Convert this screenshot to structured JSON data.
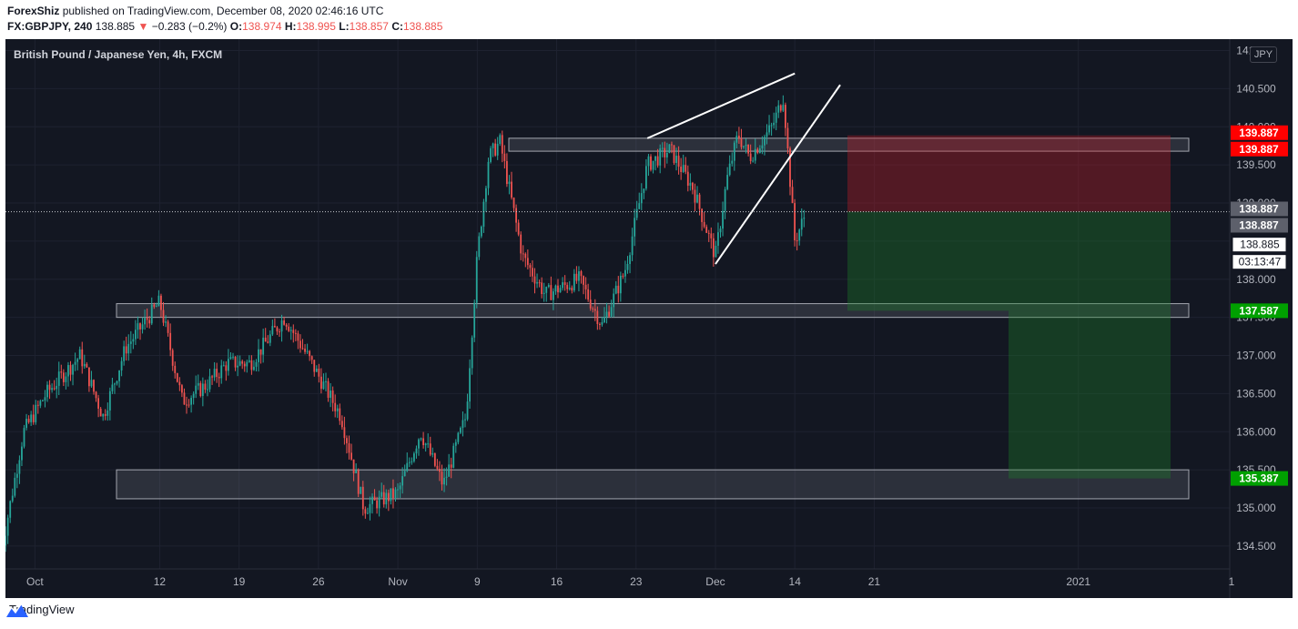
{
  "header": {
    "author": "ForexShiz",
    "published_text": "published on TradingView.com, December 08, 2020 02:46:16 UTC",
    "symbol": "FX:GBPJPY, 240",
    "last": "138.885",
    "change_arrow": "▼",
    "change": "−0.283 (−0.2%)",
    "o_label": "O:",
    "o_value": "138.974",
    "h_label": "H:",
    "h_value": "138.995",
    "l_label": "L:",
    "l_value": "138.857",
    "c_label": "C:",
    "c_value": "138.885"
  },
  "chart": {
    "title": "British Pound / Japanese Yen, 4h, FXCM",
    "currency": "JPY",
    "countdown": "03:13:47",
    "current_price_label": "138.885"
  },
  "footer": {
    "brand": "TradingView",
    "logo_icon": "tradingview-logo-icon"
  },
  "colors": {
    "background": "#131722",
    "up": "#26a69a",
    "down": "#ef5350",
    "stop": "#ff0000",
    "target": "#00a000"
  },
  "chart_data": {
    "type": "candlestick",
    "title": "British Pound / Japanese Yen, 4h, FXCM",
    "x_tick_labels": [
      "Oct",
      "12",
      "19",
      "26",
      "Nov",
      "9",
      "16",
      "23",
      "Dec",
      "14",
      "21",
      "2021"
    ],
    "y_tick_labels": [
      "134.500",
      "135.000",
      "135.500",
      "136.000",
      "136.500",
      "137.000",
      "137.500",
      "138.000",
      "138.500",
      "139.000",
      "139.500",
      "140.000",
      "140.500",
      "141.000"
    ],
    "ylim": [
      134.2,
      141.15
    ],
    "anchor_points": [
      {
        "date": "Sep 28",
        "price": 134.4
      },
      {
        "date": "Sep 30",
        "price": 136.0
      },
      {
        "date": "Oct 2",
        "price": 136.5
      },
      {
        "date": "Oct 5",
        "price": 137.0
      },
      {
        "date": "Oct 7",
        "price": 136.2
      },
      {
        "date": "Oct 9",
        "price": 137.1
      },
      {
        "date": "Oct 12",
        "price": 137.7
      },
      {
        "date": "Oct 14",
        "price": 136.4
      },
      {
        "date": "Oct 16",
        "price": 136.6
      },
      {
        "date": "Oct 18",
        "price": 136.9
      },
      {
        "date": "Oct 20",
        "price": 136.9
      },
      {
        "date": "Oct 23",
        "price": 137.5
      },
      {
        "date": "Oct 25",
        "price": 137.0
      },
      {
        "date": "Oct 28",
        "price": 136.2
      },
      {
        "date": "Oct 30",
        "price": 135.0
      },
      {
        "date": "Nov 2",
        "price": 135.2
      },
      {
        "date": "Nov 4",
        "price": 136.0
      },
      {
        "date": "Nov 6",
        "price": 135.3
      },
      {
        "date": "Nov 8",
        "price": 136.2
      },
      {
        "date": "Nov 9",
        "price": 138.3
      },
      {
        "date": "Nov 10",
        "price": 139.6
      },
      {
        "date": "Nov 11",
        "price": 139.8
      },
      {
        "date": "Nov 13",
        "price": 138.3
      },
      {
        "date": "Nov 15",
        "price": 137.8
      },
      {
        "date": "Nov 18",
        "price": 138.0
      },
      {
        "date": "Nov 20",
        "price": 137.4
      },
      {
        "date": "Nov 22",
        "price": 138.1
      },
      {
        "date": "Nov 24",
        "price": 139.5
      },
      {
        "date": "Nov 26",
        "price": 139.7
      },
      {
        "date": "Nov 28",
        "price": 139.2
      },
      {
        "date": "Nov 30",
        "price": 138.3
      },
      {
        "date": "Dec 1",
        "price": 139.3
      },
      {
        "date": "Dec 2",
        "price": 139.9
      },
      {
        "date": "Dec 3",
        "price": 139.6
      },
      {
        "date": "Dec 5",
        "price": 140.0
      },
      {
        "date": "Dec 6",
        "price": 140.4
      },
      {
        "date": "Dec 7",
        "price": 138.5
      },
      {
        "date": "Dec 8",
        "price": 138.885
      }
    ],
    "zones": [
      {
        "name": "resistance",
        "price_top": 139.85,
        "price_bottom": 139.68
      },
      {
        "name": "support",
        "price_top": 137.68,
        "price_bottom": 137.5
      },
      {
        "name": "demand",
        "price_top": 135.5,
        "price_bottom": 135.12
      }
    ],
    "trendlines": [
      {
        "from": {
          "date": "Nov 24",
          "price": 139.85
        },
        "to": {
          "date": "Dec 7",
          "price": 140.7
        }
      },
      {
        "from": {
          "date": "Nov 30",
          "price": 138.2
        },
        "to": {
          "date": "Dec 11",
          "price": 140.55
        }
      }
    ],
    "position": {
      "entry": 138.887,
      "stop": 139.887,
      "target1": 137.587,
      "target2": 135.387
    },
    "price_labels": [
      {
        "text": "139.887",
        "kind": "stop"
      },
      {
        "text": "139.887",
        "kind": "stop"
      },
      {
        "text": "138.887",
        "kind": "entry"
      },
      {
        "text": "138.887",
        "kind": "entry"
      },
      {
        "text": "137.587",
        "kind": "target"
      },
      {
        "text": "135.387",
        "kind": "target"
      }
    ]
  }
}
